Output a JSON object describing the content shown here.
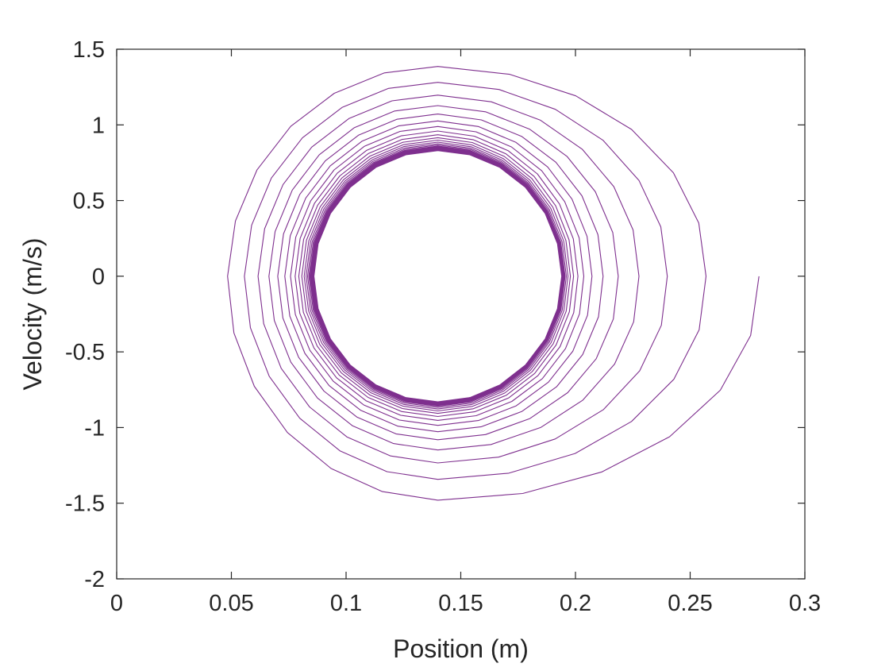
{
  "chart_data": {
    "type": "line",
    "title": "",
    "xlabel": "Position (m)",
    "ylabel": "Velocity (m/s)",
    "xlim": [
      0,
      0.3
    ],
    "ylim": [
      -2,
      1.5
    ],
    "xticks": [
      0,
      0.05,
      0.1,
      0.15,
      0.2,
      0.25,
      0.3
    ],
    "xtick_labels": [
      "0",
      "0.05",
      "0.1",
      "0.15",
      "0.2",
      "0.25",
      "0.3"
    ],
    "yticks": [
      -2,
      -1.5,
      -1,
      -0.5,
      0,
      0.5,
      1,
      1.5
    ],
    "ytick_labels": [
      "-2",
      "-1.5",
      "-1",
      "-0.5",
      "0",
      "0.5",
      "1",
      "1.5"
    ],
    "grid": false,
    "legend": "none",
    "series": [
      {
        "color": "#7E2F8E",
        "description_values": {
          "center_position": 0.14,
          "start_position": 0.28,
          "start_velocity": 0,
          "first_turn_min_position": 0.044,
          "first_turn_max_velocity": 1.48,
          "first_turn_min_velocity": -1.52,
          "limit_cycle_position_half_width": 0.054,
          "limit_cycle_velocity_amplitude": 0.83,
          "revolutions": 40
        }
      }
    ]
  }
}
